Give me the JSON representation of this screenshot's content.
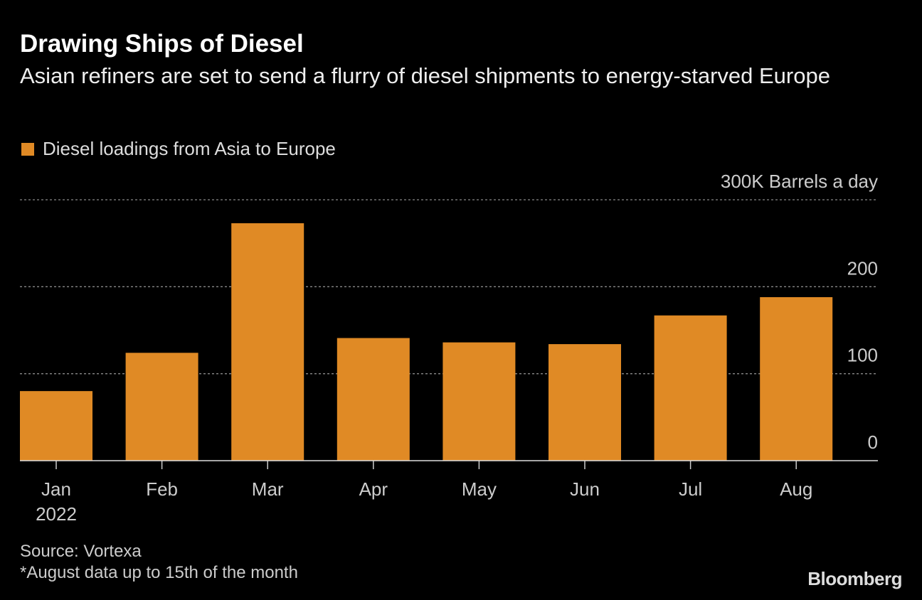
{
  "chart_data": {
    "type": "bar",
    "title": "Drawing Ships of Diesel",
    "subtitle": "Asian refiners are set to send a flurry of diesel shipments to energy-starved Europe",
    "categories": [
      "Jan",
      "Feb",
      "Mar",
      "Apr",
      "May",
      "Jun",
      "Jul",
      "Aug"
    ],
    "x_sublabel": "2022",
    "series": [
      {
        "name": "Diesel loadings from Asia to Europe",
        "values": [
          80,
          124,
          273,
          141,
          136,
          134,
          167,
          188
        ],
        "color": "#E08A25"
      }
    ],
    "ylabel": "",
    "y_unit_label": "300K Barrels a day",
    "yticks": [
      0,
      100,
      200,
      300
    ],
    "ytick_labels": [
      "0",
      "100",
      "200",
      "300K Barrels a day"
    ],
    "ylim": [
      0,
      300
    ],
    "grid": true,
    "legend_position": "top-left"
  },
  "footer": {
    "source": "Source: Vortexa",
    "note": "*August data up to 15th of the month"
  },
  "brand": "Bloomberg"
}
